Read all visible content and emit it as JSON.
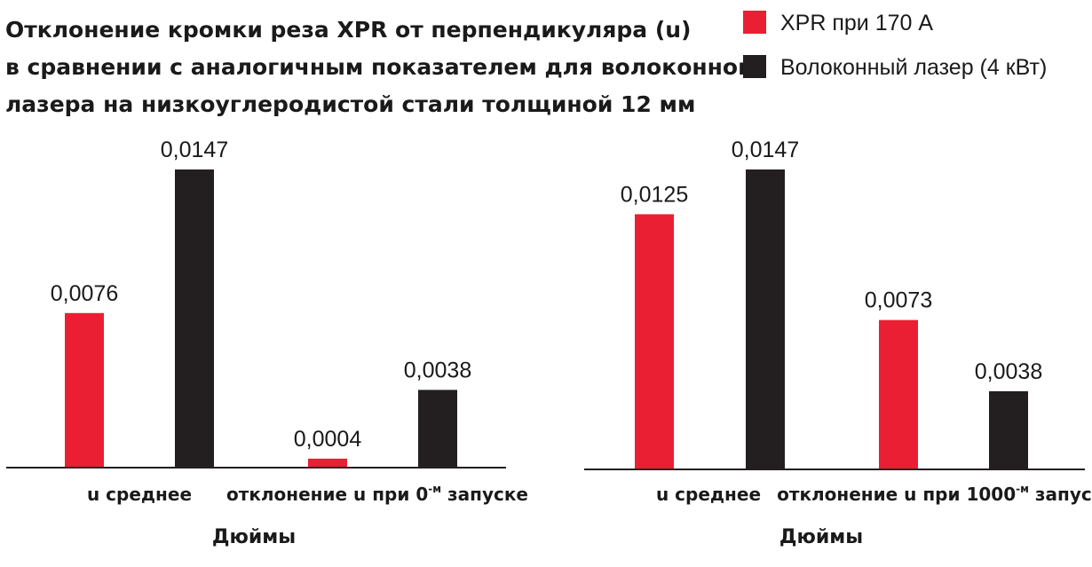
{
  "title_lines": [
    "Отклонение кромки реза XPR от перпендикуляра (u)",
    "в сравнении с аналогичным показателем для волоконного",
    "лазера на низкоуглеродистой стали толщиной 12 мм"
  ],
  "colors": {
    "red": "#ea1f33",
    "black": "#231f20"
  },
  "legend": [
    {
      "label": "XPR при 170 A",
      "color": "#ea1f33"
    },
    {
      "label": "Волоконный лазер (4 кВт)",
      "color": "#231f20"
    }
  ],
  "chart_data": [
    {
      "type": "bar",
      "categories": [
        {
          "text": "u среднее",
          "sup": "",
          "after": ""
        },
        {
          "text": "отклонение u при 0",
          "sup": "-м",
          "after": " запуске"
        }
      ],
      "series": [
        {
          "name": "XPR при 170 A",
          "values": [
            0.0076,
            0.0004
          ],
          "labels": [
            "0,0076",
            "0,0004"
          ]
        },
        {
          "name": "Волоконный лазер (4 кВт)",
          "values": [
            0.0147,
            0.0038
          ],
          "labels": [
            "0,0147",
            "0,0038"
          ]
        }
      ],
      "xlabel": "Дюймы",
      "ylim": [
        0,
        0.0147
      ],
      "grid": false,
      "legend_position": "top-right"
    },
    {
      "type": "bar",
      "categories": [
        {
          "text": "u среднее",
          "sup": "",
          "after": ""
        },
        {
          "text": "отклонение u при 1000",
          "sup": "-м",
          "after": " запуске"
        }
      ],
      "series": [
        {
          "name": "XPR при 170 A",
          "values": [
            0.0125,
            0.0073
          ],
          "labels": [
            "0,0125",
            "0,0073"
          ]
        },
        {
          "name": "Волоконный лазер (4 кВт)",
          "values": [
            0.0147,
            0.0038
          ],
          "labels": [
            "0,0147",
            "0,0038"
          ]
        }
      ],
      "xlabel": "Дюймы",
      "ylim": [
        0,
        0.0147
      ],
      "grid": false,
      "legend_position": "top-right"
    }
  ]
}
